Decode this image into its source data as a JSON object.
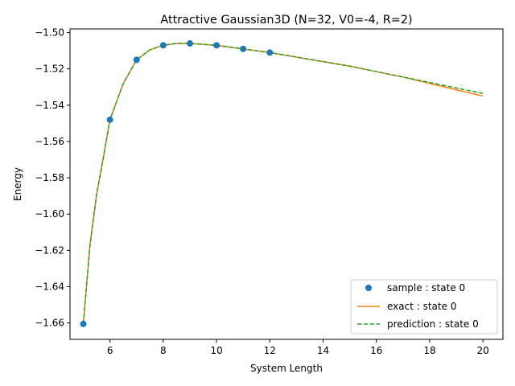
{
  "chart_data": {
    "type": "line",
    "title": "Attractive Gaussian3D (N=32, V0=-4, R=2)",
    "xlabel": "System Length",
    "ylabel": "Energy",
    "xlim": [
      4.5,
      20.75
    ],
    "ylim": [
      -1.669,
      -1.498
    ],
    "x_ticks": [
      6,
      8,
      10,
      12,
      14,
      16,
      18,
      20
    ],
    "x_tick_labels": [
      "6",
      "8",
      "10",
      "12",
      "14",
      "16",
      "18",
      "20"
    ],
    "y_ticks": [
      -1.66,
      -1.64,
      -1.62,
      -1.6,
      -1.58,
      -1.56,
      -1.54,
      -1.52,
      -1.5
    ],
    "y_tick_labels": [
      "−1.66",
      "−1.64",
      "−1.62",
      "−1.60",
      "−1.58",
      "−1.56",
      "−1.54",
      "−1.52",
      "−1.50"
    ],
    "grid": false,
    "legend_position": "lower-right",
    "series": [
      {
        "name": "sample : state 0",
        "kind": "scatter",
        "color": "#1f77b4",
        "x": [
          5,
          6,
          7,
          8,
          9,
          10,
          11,
          12
        ],
        "y": [
          -1.6605,
          -1.548,
          -1.515,
          -1.507,
          -1.506,
          -1.507,
          -1.509,
          -1.511
        ]
      },
      {
        "name": "exact : state 0",
        "kind": "line",
        "color": "#ff7f0e",
        "x": [
          5,
          5.25,
          5.5,
          5.75,
          6,
          6.5,
          7,
          7.5,
          8,
          8.5,
          9,
          9.5,
          10,
          11,
          12,
          13,
          14,
          15,
          16,
          17,
          18,
          19,
          20
        ],
        "y": [
          -1.6605,
          -1.617,
          -1.589,
          -1.569,
          -1.548,
          -1.528,
          -1.515,
          -1.5095,
          -1.507,
          -1.506,
          -1.506,
          -1.5065,
          -1.507,
          -1.509,
          -1.511,
          -1.5135,
          -1.516,
          -1.5185,
          -1.5215,
          -1.5245,
          -1.528,
          -1.5315,
          -1.535
        ]
      },
      {
        "name": "prediction : state 0",
        "kind": "dashed",
        "color": "#2ca02c",
        "x": [
          5,
          5.25,
          5.5,
          5.75,
          6,
          6.5,
          7,
          7.5,
          8,
          8.5,
          9,
          9.5,
          10,
          11,
          12,
          13,
          14,
          15,
          16,
          17,
          18,
          19,
          20
        ],
        "y": [
          -1.6605,
          -1.617,
          -1.589,
          -1.569,
          -1.548,
          -1.528,
          -1.515,
          -1.5095,
          -1.507,
          -1.506,
          -1.506,
          -1.5065,
          -1.507,
          -1.509,
          -1.511,
          -1.5135,
          -1.516,
          -1.5185,
          -1.5215,
          -1.5245,
          -1.5275,
          -1.5305,
          -1.5335
        ]
      }
    ]
  }
}
